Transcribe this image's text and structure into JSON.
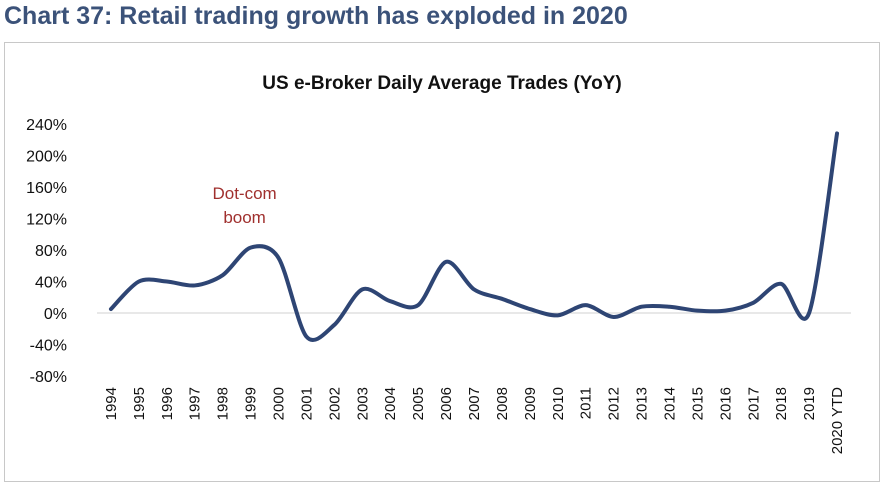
{
  "page_heading": "Chart 37: Retail trading growth has exploded in 2020",
  "chart_data": {
    "type": "line",
    "title": "US e-Broker Daily Average Trades (YoY)",
    "xlabel": "",
    "ylabel": "",
    "categories": [
      "1994",
      "1995",
      "1996",
      "1997",
      "1998",
      "1999",
      "2000",
      "2001",
      "2002",
      "2003",
      "2004",
      "2005",
      "2006",
      "2007",
      "2008",
      "2009",
      "2010",
      "2011",
      "2012",
      "2013",
      "2014",
      "2015",
      "2016",
      "2017",
      "2018",
      "2019",
      "2020 YTD"
    ],
    "series": [
      {
        "name": "US e-Broker Daily Average Trades (YoY)",
        "color": "#2e4574",
        "values": [
          5,
          40,
          40,
          35,
          48,
          83,
          70,
          -30,
          -15,
          30,
          15,
          10,
          65,
          30,
          18,
          5,
          -3,
          10,
          -5,
          8,
          8,
          3,
          3,
          13,
          37,
          0,
          228
        ]
      }
    ],
    "ylim": [
      -80,
      240
    ],
    "yticks": [
      240,
      200,
      160,
      120,
      80,
      40,
      0,
      -40,
      -80
    ],
    "ytick_labels": [
      "240%",
      "200%",
      "160%",
      "120%",
      "80%",
      "40%",
      "0%",
      "-40%",
      "-80%"
    ],
    "annotation": {
      "lines": [
        "Dot-com",
        "boom"
      ],
      "near_category": "1999",
      "near_value": 145,
      "color": "#a0302e"
    }
  }
}
